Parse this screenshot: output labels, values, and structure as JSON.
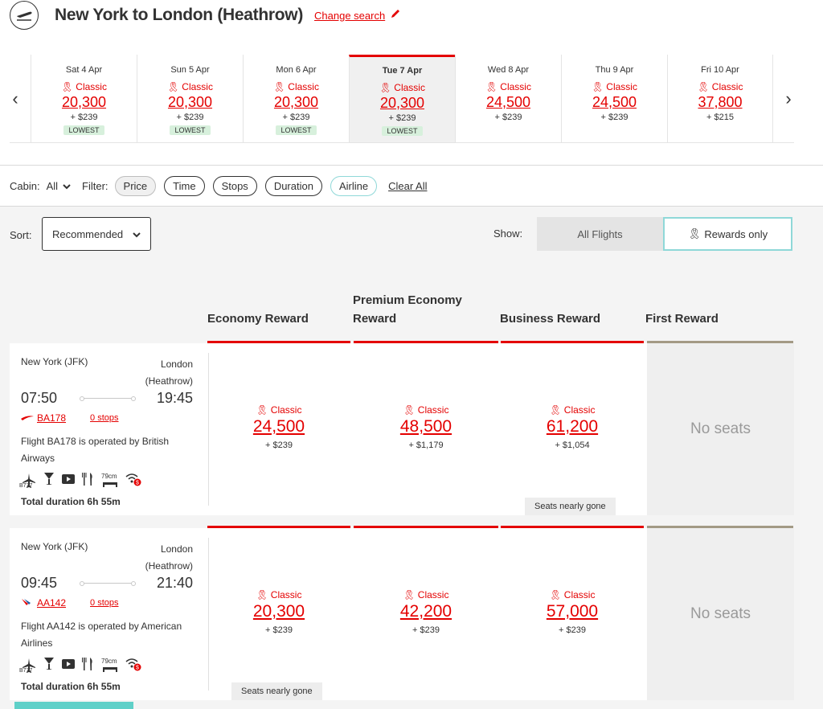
{
  "header": {
    "title": "New York to London (Heathrow)",
    "change_search": "Change search"
  },
  "dates": [
    {
      "label": "Sat 4 Apr",
      "class": "Classic",
      "points": "20,300",
      "tax": "+ $239",
      "badge": "LOWEST"
    },
    {
      "label": "Sun 5 Apr",
      "class": "Classic",
      "points": "20,300",
      "tax": "+ $239",
      "badge": "LOWEST"
    },
    {
      "label": "Mon 6 Apr",
      "class": "Classic",
      "points": "20,300",
      "tax": "+ $239",
      "badge": "LOWEST"
    },
    {
      "label": "Tue 7 Apr",
      "class": "Classic",
      "points": "20,300",
      "tax": "+ $239",
      "badge": "LOWEST"
    },
    {
      "label": "Wed 8 Apr",
      "class": "Classic",
      "points": "24,500",
      "tax": "+ $239",
      "badge": ""
    },
    {
      "label": "Thu 9 Apr",
      "class": "Classic",
      "points": "24,500",
      "tax": "+ $239",
      "badge": ""
    },
    {
      "label": "Fri 10 Apr",
      "class": "Classic",
      "points": "37,800",
      "tax": "+ $215",
      "badge": ""
    }
  ],
  "filters": {
    "cabin_label": "Cabin:",
    "cabin_value": "All",
    "filter_label": "Filter:",
    "price": "Price",
    "time": "Time",
    "stops": "Stops",
    "duration": "Duration",
    "airline": "Airline",
    "clear_all": "Clear All"
  },
  "sort": {
    "label": "Sort:",
    "value": "Recommended"
  },
  "show": {
    "label": "Show:",
    "all_flights": "All Flights",
    "rewards_only": "Rewards only"
  },
  "columns": {
    "economy": "Economy Reward",
    "premium_1": "Premium Economy",
    "premium_2": "Reward",
    "business": "Business Reward",
    "first": "First Reward"
  },
  "flights": [
    {
      "origin": "New York (JFK)",
      "dest_1": "London",
      "dest_2": "(Heathrow)",
      "depart": "07:50",
      "arrive": "19:45",
      "flight": "BA178",
      "stops": "0 stops",
      "operated": "Flight BA178 is operated by British Airways",
      "aircraft": "B777",
      "seat_pitch": "79cm",
      "duration": "Total duration 6h 55m",
      "economy": {
        "class": "Classic",
        "points": "24,500",
        "tax": "+ $239"
      },
      "premium": {
        "class": "Classic",
        "points": "48,500",
        "tax": "+ $1,179"
      },
      "business": {
        "class": "Classic",
        "points": "61,200",
        "tax": "+ $1,054"
      },
      "first": "No seats",
      "seats_note": "Seats nearly gone"
    },
    {
      "origin": "New York (JFK)",
      "dest_1": "London",
      "dest_2": "(Heathrow)",
      "depart": "09:45",
      "arrive": "21:40",
      "flight": "AA142",
      "stops": "0 stops",
      "operated": "Flight AA142 is operated by American Airlines",
      "aircraft": "B777",
      "seat_pitch": "79cm",
      "duration": "Total duration 6h 55m",
      "economy": {
        "class": "Classic",
        "points": "20,300",
        "tax": "+ $239"
      },
      "premium": {
        "class": "Classic",
        "points": "42,200",
        "tax": "+ $239"
      },
      "business": {
        "class": "Classic",
        "points": "57,000",
        "tax": "+ $239"
      },
      "first": "No seats",
      "seats_note": "Seats nearly gone"
    }
  ]
}
